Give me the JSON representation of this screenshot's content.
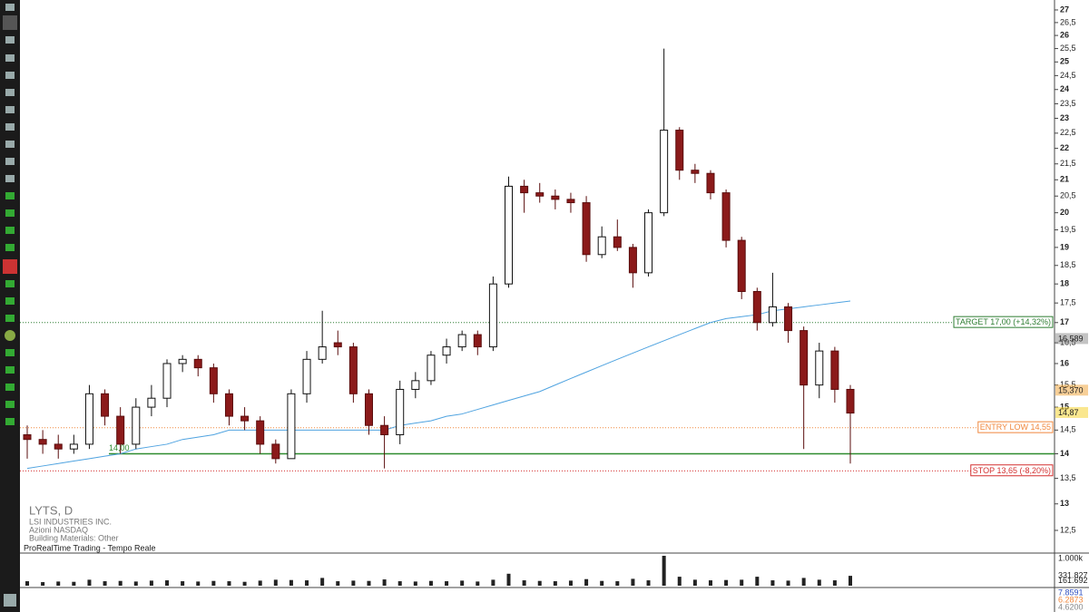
{
  "chart_data": {
    "type": "candlestick",
    "symbol": "LYTS, D",
    "company": "LSI INDUSTRIES INC.",
    "market": "Azioni NASDAQ",
    "sector": "Building Materials: Other",
    "source": "ProRealTime Trading - Tempo Reale",
    "log_scale": true,
    "ylim": [
      12.3,
      27.4
    ],
    "yticks": [
      {
        "value": 12.5,
        "label": "12,5"
      },
      13,
      {
        "value": 13.5,
        "label": "13,5"
      },
      14,
      {
        "value": 14.5,
        "label": "14,5"
      },
      15,
      {
        "value": 15.5,
        "label": "15,5"
      },
      16,
      {
        "value": 16.5,
        "label": "16,5"
      },
      17,
      {
        "value": 17.5,
        "label": "17,5"
      },
      18,
      {
        "value": 18.5,
        "label": "18,5"
      },
      19,
      {
        "value": 19.5,
        "label": "19,5"
      },
      20,
      {
        "value": 20.5,
        "label": "20,5"
      },
      21,
      {
        "value": 21.5,
        "label": "21,5"
      },
      22,
      {
        "value": 22.5,
        "label": "22,5"
      },
      23,
      {
        "value": 23.5,
        "label": "23,5"
      },
      24,
      {
        "value": 24.5,
        "label": "24,5"
      },
      25,
      {
        "value": 25.5,
        "label": "25,5"
      },
      26,
      {
        "value": 26.5,
        "label": "26,5"
      },
      27
    ],
    "up_color": "#ffffff",
    "down_color": "#8b1a1a",
    "open": [
      14.4,
      14.3,
      14.2,
      14.1,
      14.2,
      15.3,
      14.8,
      14.2,
      15.0,
      15.2,
      16.0,
      16.1,
      15.9,
      15.3,
      14.8,
      14.7,
      14.2,
      13.9,
      15.3,
      16.1,
      16.5,
      16.4,
      15.3,
      14.6,
      14.4,
      15.4,
      15.6,
      16.2,
      16.4,
      16.7,
      16.4,
      18.0,
      20.8,
      20.6,
      20.5,
      20.4,
      20.3,
      18.8,
      19.3,
      19.0,
      18.3,
      20.0,
      22.6,
      21.3,
      21.2,
      20.6,
      19.2,
      17.8,
      17.0,
      17.4,
      16.8,
      15.5,
      16.3,
      15.4
    ],
    "high": [
      14.6,
      14.5,
      14.4,
      14.4,
      15.5,
      15.4,
      15.0,
      15.2,
      15.5,
      16.1,
      16.2,
      16.2,
      16.0,
      15.4,
      15.0,
      14.8,
      14.3,
      15.4,
      16.3,
      17.3,
      16.8,
      16.5,
      15.4,
      14.8,
      15.6,
      15.8,
      16.3,
      16.6,
      16.8,
      16.8,
      18.2,
      21.1,
      21.0,
      20.9,
      20.7,
      20.6,
      20.5,
      19.6,
      19.8,
      19.1,
      20.1,
      25.5,
      22.7,
      21.5,
      21.3,
      20.7,
      19.3,
      17.9,
      18.3,
      17.5,
      16.9,
      16.5,
      16.4,
      15.5
    ],
    "low": [
      13.9,
      14.0,
      13.9,
      14.0,
      14.1,
      14.6,
      14.0,
      14.1,
      14.8,
      15.0,
      15.8,
      15.7,
      15.1,
      14.6,
      14.5,
      14.0,
      13.8,
      13.9,
      15.1,
      16.0,
      16.2,
      15.1,
      14.4,
      13.7,
      14.2,
      15.2,
      15.5,
      16.0,
      16.3,
      16.2,
      16.3,
      17.9,
      20.0,
      20.3,
      20.1,
      20.0,
      18.6,
      18.7,
      18.9,
      17.9,
      18.2,
      19.9,
      21.0,
      20.9,
      20.4,
      19.0,
      17.6,
      16.8,
      16.9,
      16.5,
      14.1,
      15.2,
      15.1,
      13.8
    ],
    "close": [
      14.3,
      14.2,
      14.1,
      14.2,
      15.3,
      14.8,
      14.2,
      15.0,
      15.2,
      16.0,
      16.1,
      15.9,
      15.3,
      14.8,
      14.7,
      14.2,
      13.9,
      15.3,
      16.1,
      16.4,
      16.4,
      15.3,
      14.6,
      14.4,
      15.4,
      15.6,
      16.2,
      16.4,
      16.7,
      16.4,
      18.0,
      20.8,
      20.6,
      20.5,
      20.4,
      20.3,
      18.8,
      19.3,
      19.0,
      18.3,
      20.0,
      22.6,
      21.3,
      21.2,
      20.6,
      19.2,
      17.8,
      17.0,
      17.4,
      16.8,
      15.5,
      16.3,
      15.4,
      14.87
    ],
    "overlays": [
      {
        "color": "#4fa3e0",
        "values": [
          13.7,
          13.75,
          13.8,
          13.85,
          13.9,
          13.95,
          14.0,
          14.1,
          14.15,
          14.2,
          14.3,
          14.35,
          14.4,
          14.5,
          14.5,
          14.5,
          14.5,
          14.5,
          14.5,
          14.5,
          14.5,
          14.5,
          14.5,
          14.5,
          14.6,
          14.65,
          14.7,
          14.8,
          14.85,
          14.95,
          15.05,
          15.15,
          15.25,
          15.35,
          15.5,
          15.65,
          15.8,
          15.95,
          16.1,
          16.25,
          16.4,
          16.55,
          16.7,
          16.85,
          17.0,
          17.1,
          17.15,
          17.2,
          17.3,
          17.35,
          17.4,
          17.45,
          17.5,
          17.55
        ]
      }
    ],
    "levels": [
      {
        "value": 17,
        "label": "TARGET 17,00 (+14,32%)",
        "color": "#2e7d32"
      },
      {
        "value": 14.55,
        "label": "ENTRY LOW 14,55",
        "color": "#f0883e"
      },
      {
        "value": 13.65,
        "label": "STOP 13,65 (-8,20%)",
        "color": "#d32f2f"
      }
    ],
    "support": {
      "value": 14,
      "label": "14,00",
      "color": "#2e8b2e"
    },
    "price_labels": [
      {
        "value": 16.589,
        "label": "16,589",
        "color": "#888888"
      },
      {
        "value": 15.37,
        "label": "15,370",
        "color": "#f0a030"
      },
      {
        "value": 14.87,
        "label": "14,87",
        "color": "#f5d020"
      }
    ],
    "volume": {
      "ylim": [
        0,
        1000
      ],
      "color": "#222222",
      "values": [
        150,
        120,
        140,
        130,
        200,
        150,
        160,
        140,
        170,
        180,
        150,
        140,
        160,
        150,
        130,
        170,
        200,
        190,
        180,
        260,
        150,
        170,
        160,
        210,
        150,
        140,
        160,
        150,
        170,
        140,
        200,
        400,
        180,
        160,
        150,
        170,
        220,
        160,
        150,
        230,
        180,
        1000,
        300,
        200,
        180,
        190,
        200,
        300,
        180,
        170,
        260,
        200,
        180,
        330
      ],
      "labels": [
        {
          "value": 1000,
          "label": "1.000k"
        },
        {
          "value": 331.827,
          "label": "331.827"
        },
        {
          "value": 161.692,
          "label": "161.692"
        }
      ]
    },
    "indicator": {
      "labels": [
        "7.8591",
        "6.2873",
        "4.6200"
      ]
    }
  }
}
